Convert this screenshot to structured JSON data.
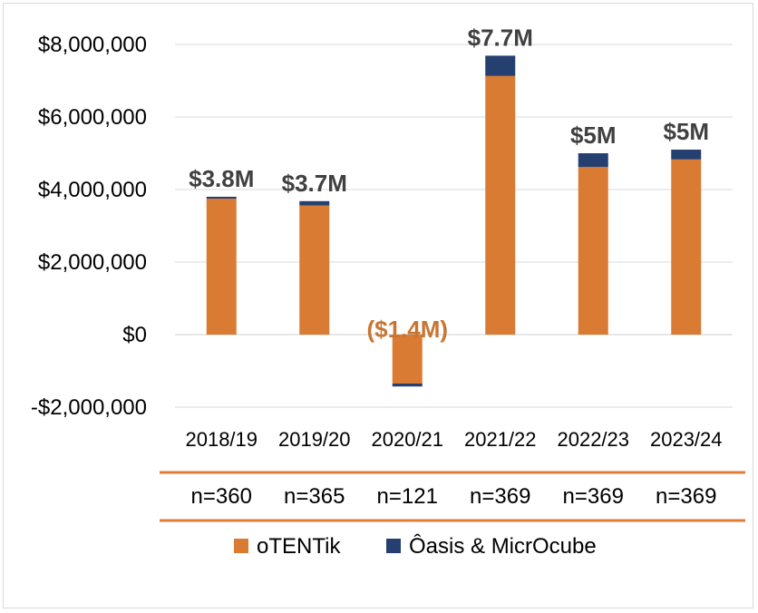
{
  "chart_data": {
    "type": "bar",
    "stacked": true,
    "categories": [
      "2018/19",
      "2019/20",
      "2020/21",
      "2021/22",
      "2022/23",
      "2023/24"
    ],
    "series": [
      {
        "name": "oTENTik",
        "color": "#D97B33",
        "values": [
          3750000,
          3560000,
          -1350000,
          7130000,
          4620000,
          4830000
        ]
      },
      {
        "name": "Ôasis & MicrOcube",
        "color": "#243F70",
        "values": [
          50000,
          120000,
          -80000,
          560000,
          380000,
          270000
        ]
      }
    ],
    "total_labels": [
      "$3.8M",
      "$3.7M",
      "($1.4M)",
      "$7.7M",
      "$5M",
      "$5M"
    ],
    "total_label_colors": [
      "#404040",
      "#404040",
      "#C87533",
      "#404040",
      "#404040",
      "#404040"
    ],
    "sample_sizes": [
      "n=360",
      "n=365",
      "n=121",
      "n=369",
      "n=369",
      "n=369"
    ],
    "ylim": [
      -2000000,
      8000000
    ],
    "yticks": [
      8000000,
      6000000,
      4000000,
      2000000,
      0,
      -2000000
    ],
    "ytick_labels": [
      "$8,000,000",
      "$6,000,000",
      "$4,000,000",
      "$2,000,000",
      "$0",
      "-$2,000,000"
    ],
    "grid": true,
    "legend_position": "bottom",
    "divider_color": "#E07B39",
    "title": "",
    "xlabel": "",
    "ylabel": ""
  }
}
